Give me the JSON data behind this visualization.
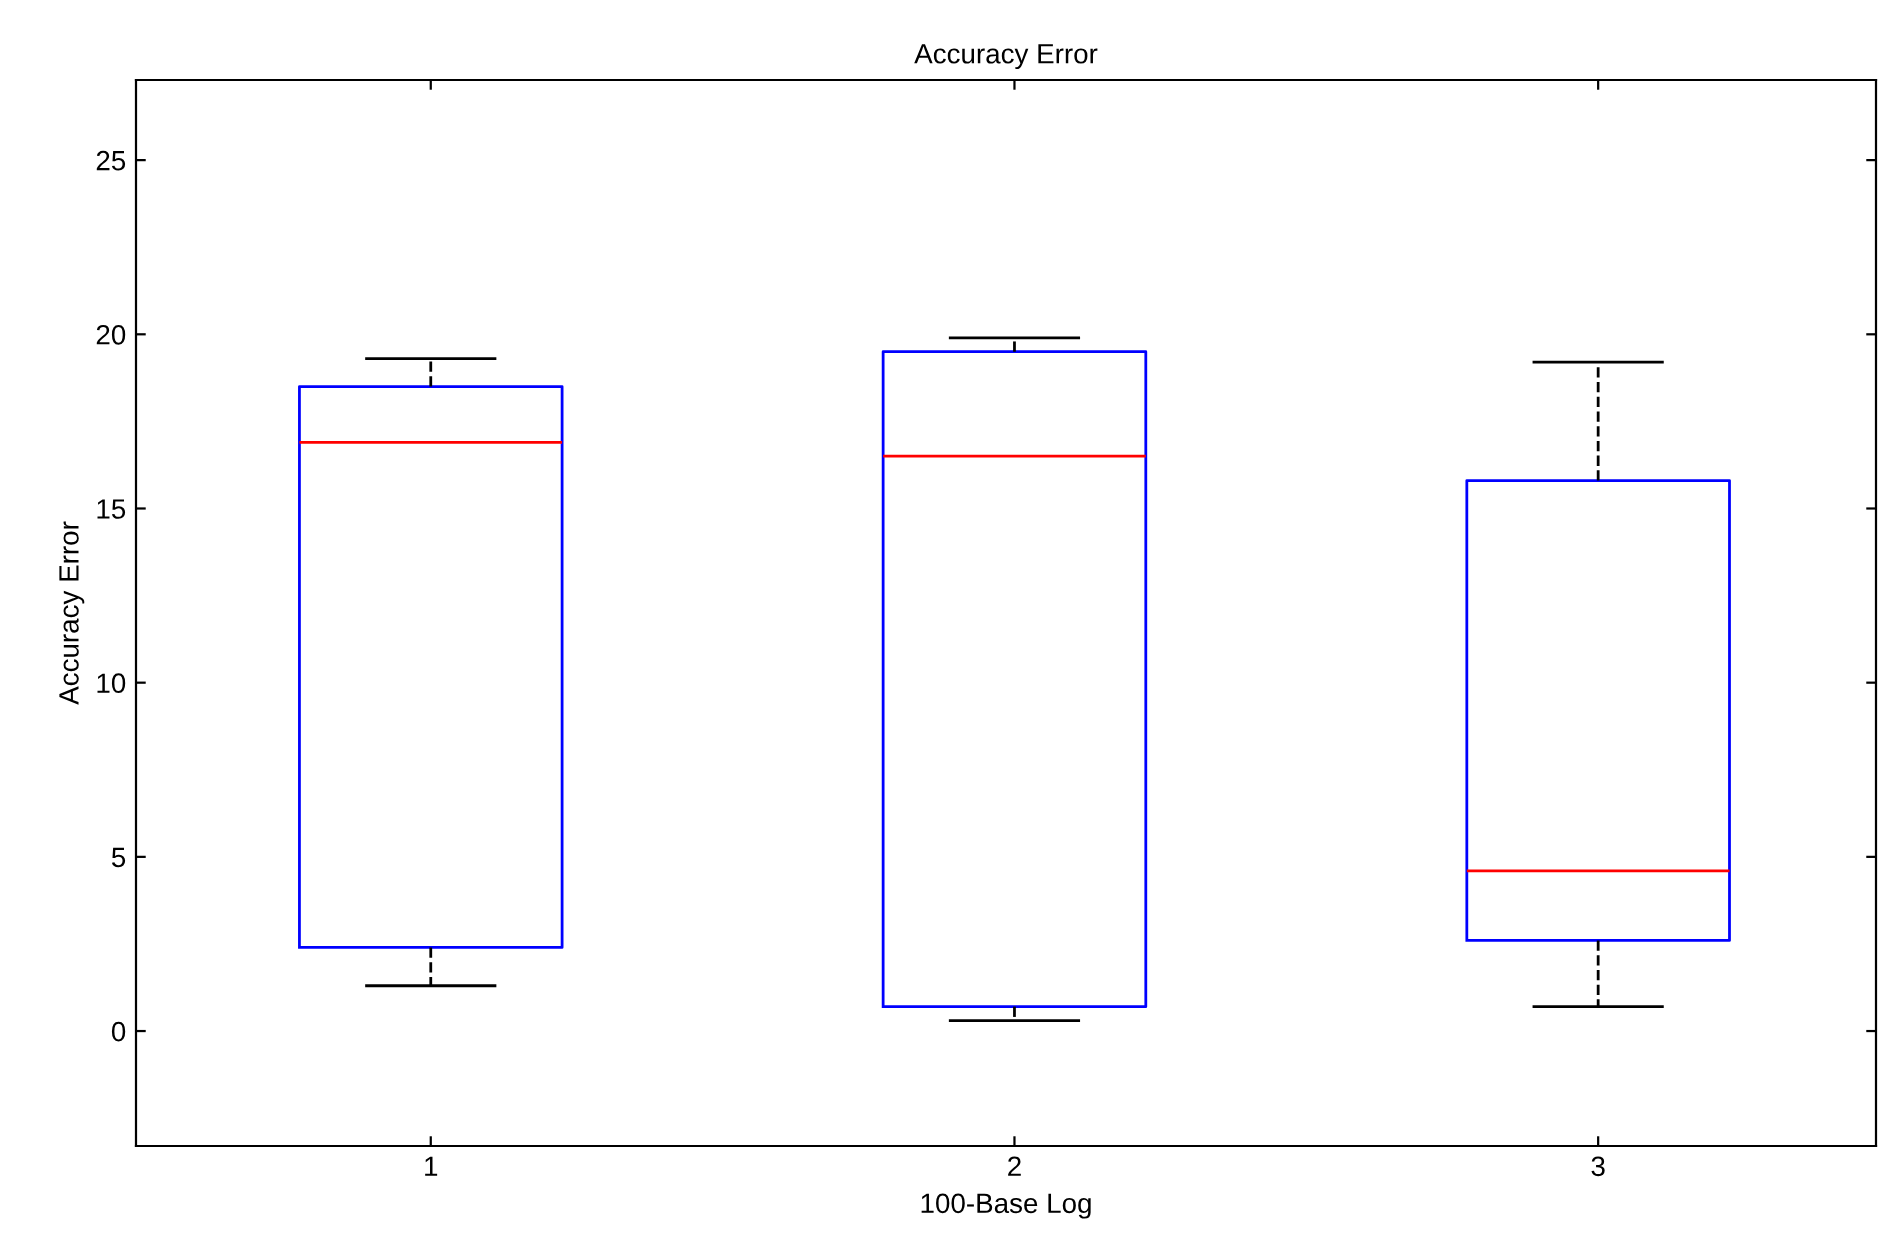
{
  "chart_data": {
    "type": "box",
    "title": "Accuracy Error",
    "xlabel": "100-Base Log",
    "ylabel": "Accuracy Error",
    "categories": [
      "1",
      "2",
      "3"
    ],
    "series": [
      {
        "color": "#0000ff",
        "boxes": [
          {
            "low": 1.3,
            "q1": 2.4,
            "median": 16.9,
            "q3": 18.5,
            "high": 19.3
          },
          {
            "low": 0.3,
            "q1": 0.7,
            "median": 16.5,
            "q3": 19.5,
            "high": 19.9
          },
          {
            "low": 0.7,
            "q1": 2.6,
            "median": 4.6,
            "q3": 15.8,
            "high": 19.2
          }
        ]
      }
    ],
    "ylim": [
      -3.3,
      27.3
    ],
    "yticks": [
      0,
      5,
      10,
      15,
      20,
      25
    ],
    "grid": false,
    "line_style": "dashed"
  }
}
